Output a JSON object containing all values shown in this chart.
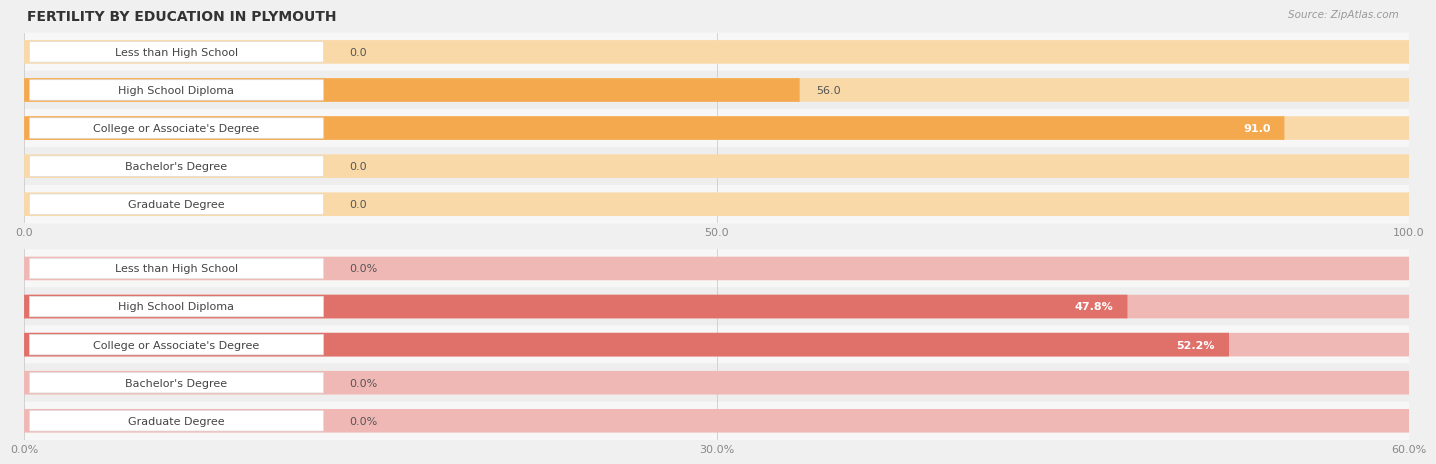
{
  "title": "FERTILITY BY EDUCATION IN PLYMOUTH",
  "source": "Source: ZipAtlas.com",
  "background_color": "#f0f0f0",
  "top_chart": {
    "categories": [
      "Less than High School",
      "High School Diploma",
      "College or Associate's Degree",
      "Bachelor's Degree",
      "Graduate Degree"
    ],
    "values": [
      0.0,
      56.0,
      91.0,
      0.0,
      0.0
    ],
    "xlim": [
      0,
      100
    ],
    "xticks": [
      0.0,
      50.0,
      100.0
    ],
    "xtick_labels": [
      "0.0",
      "50.0",
      "100.0"
    ],
    "bar_color_full": "#f5a94e",
    "bar_color_empty": "#fad9a8",
    "row_bg_light": "#f7f7f7",
    "row_bg_dark": "#eeeeee",
    "value_labels": [
      "0.0",
      "56.0",
      "91.0",
      "0.0",
      "0.0"
    ],
    "value_inside": [
      false,
      false,
      true,
      false,
      false
    ]
  },
  "bottom_chart": {
    "categories": [
      "Less than High School",
      "High School Diploma",
      "College or Associate's Degree",
      "Bachelor's Degree",
      "Graduate Degree"
    ],
    "values": [
      0.0,
      47.8,
      52.2,
      0.0,
      0.0
    ],
    "xlim": [
      0,
      60
    ],
    "xticks": [
      0.0,
      30.0,
      60.0
    ],
    "xtick_labels": [
      "0.0%",
      "30.0%",
      "60.0%"
    ],
    "bar_color_full": "#e0706a",
    "bar_color_empty": "#f0b8b5",
    "row_bg_light": "#f7f7f7",
    "row_bg_dark": "#eeeeee",
    "value_labels": [
      "0.0%",
      "47.8%",
      "52.2%",
      "0.0%",
      "0.0%"
    ],
    "value_inside": [
      false,
      true,
      true,
      false,
      false
    ]
  },
  "label_fontsize": 8,
  "value_fontsize": 8,
  "title_fontsize": 10,
  "source_fontsize": 7.5
}
